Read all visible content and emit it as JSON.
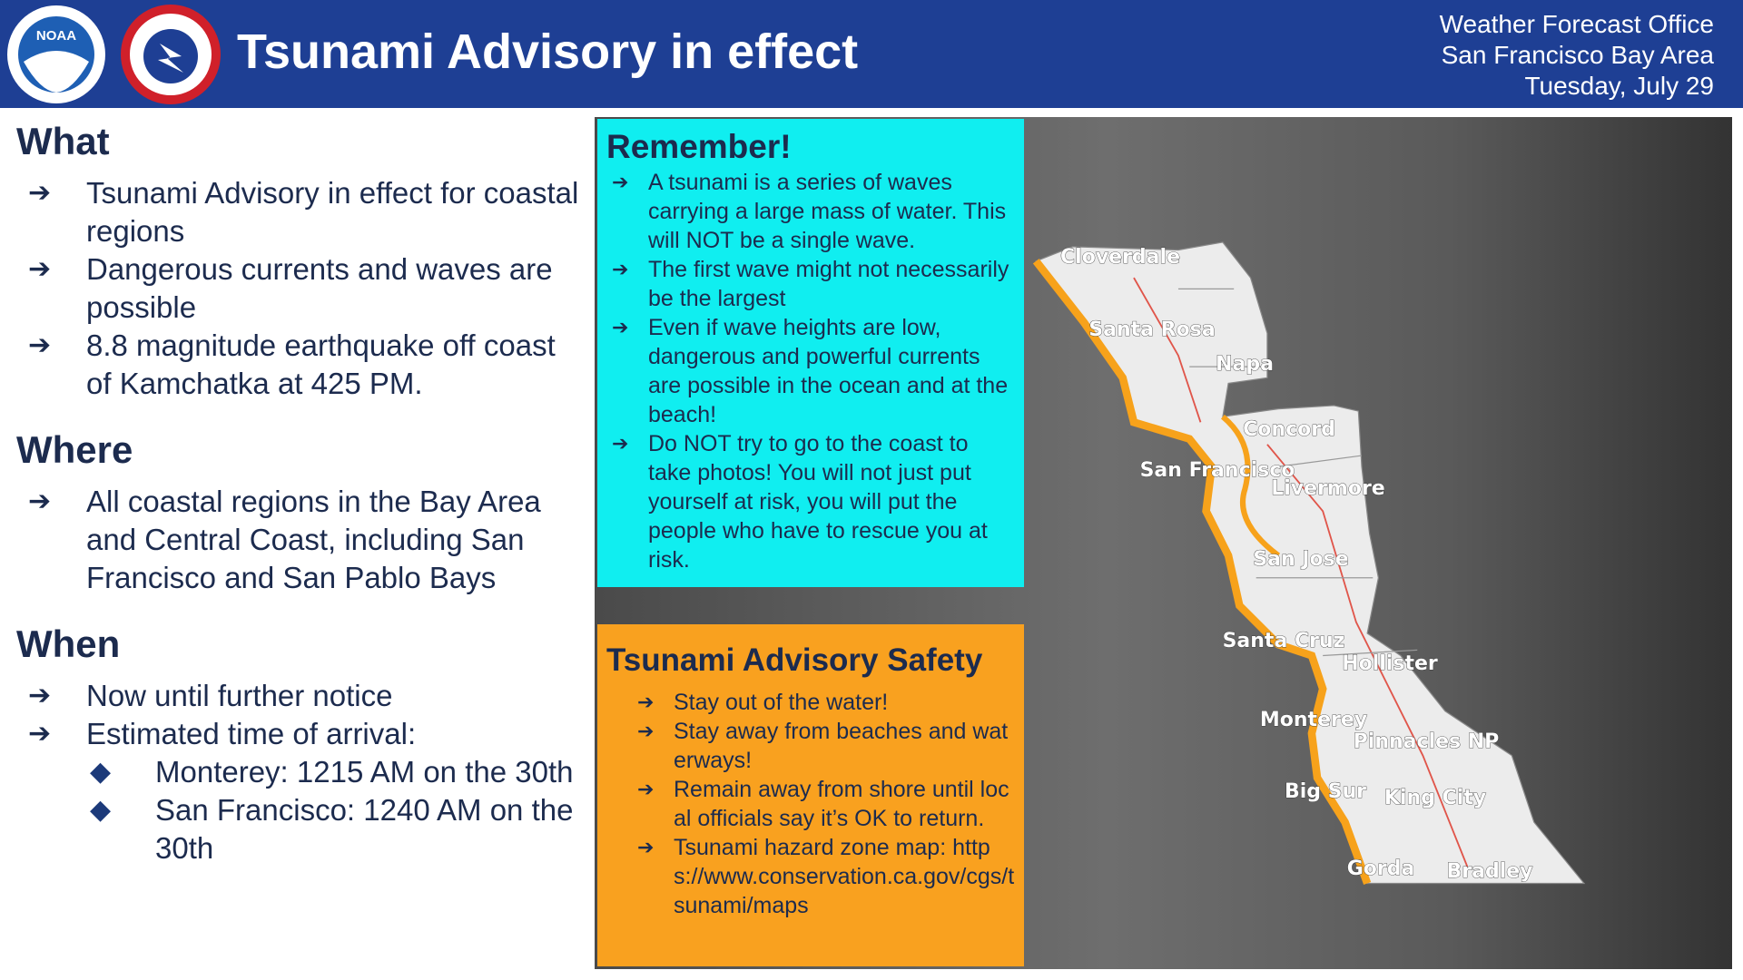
{
  "header": {
    "title": "Tsunami Advisory in effect",
    "noaa_logo_text": "NOAA",
    "office": [
      "Weather Forecast Office",
      "San Francisco Bay Area",
      "Tuesday, July 29"
    ]
  },
  "sections": [
    {
      "heading": "What",
      "items": [
        {
          "text": "Tsunami Advisory in effect for coastal regions"
        },
        {
          "text": "Dangerous currents and waves are possible"
        },
        {
          "text": "8.8 magnitude earthquake off coast of Kamchatka at 425 PM."
        }
      ]
    },
    {
      "heading": "Where",
      "items": [
        {
          "text": "All coastal regions in the Bay Area and Central Coast, including San Francisco and San Pablo Bays"
        }
      ]
    },
    {
      "heading": "When",
      "items": [
        {
          "text": "Now until further notice"
        },
        {
          "text": "Estimated time of arrival:",
          "sub_items": [
            "Monterey: 1215 AM on the 30th",
            "San Francisco: 1240 AM on the 30th"
          ]
        }
      ]
    }
  ],
  "remember": {
    "title": "Remember!",
    "items": [
      "A tsunami is a series of waves carrying a large mass of water. This will NOT be a single wave.",
      "The first wave might not necessarily be the largest",
      "Even if wave heights are low, dangerous and powerful currents are possible in the ocean and at the beach!",
      "Do NOT try to go to the coast to take photos! You will not just put yourself at risk, you will put the people who have to rescue you at risk."
    ]
  },
  "safety": {
    "title": "Tsunami Advisory Safety",
    "items": [
      "Stay out of the water!",
      "Stay away from beaches and waterways!",
      "Remain away from shore until local officials say it’s OK to return.",
      "Tsunami hazard zone map: https://www.conservation.ca.gov/cgs/tsunami/maps"
    ]
  },
  "map": {
    "labels": [
      "Cloverdale",
      "Santa Rosa",
      "Napa",
      "Concord",
      "San Francisco",
      "Livermore",
      "San Jose",
      "Santa Cruz",
      "Hollister",
      "Monterey",
      "Pinnacles NP",
      "Big Sur",
      "King City",
      "Gorda",
      "Bradley"
    ]
  }
}
